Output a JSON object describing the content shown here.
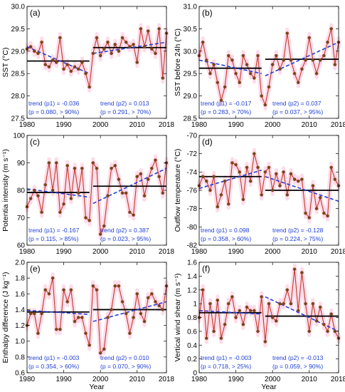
{
  "figure": {
    "colors": {
      "series": "#c0392b",
      "marker_fill": "#6b4a1a",
      "mean_line": "#000000",
      "trend_line": "#1f3fd6",
      "annotation": "#1f3fd6",
      "shade": "#ffd6e6"
    }
  },
  "chart_data": [
    {
      "type": "line",
      "panel_label": "(a)",
      "ylabel": "SST (°C)",
      "xlabel": "",
      "xlim": [
        1980,
        2018
      ],
      "ylim": [
        27.5,
        30.0
      ],
      "xticks": [
        "1980",
        "1990",
        "2000",
        "2010",
        "2018"
      ],
      "yticks": [
        "27.5",
        "28.0",
        "28.5",
        "29.0",
        "29.5",
        "30.0"
      ],
      "x": [
        1980,
        1981,
        1982,
        1983,
        1984,
        1985,
        1986,
        1987,
        1988,
        1989,
        1990,
        1991,
        1992,
        1993,
        1994,
        1995,
        1996,
        1997,
        1998,
        1999,
        2000,
        2001,
        2002,
        2003,
        2004,
        2005,
        2006,
        2007,
        2008,
        2009,
        2010,
        2011,
        2012,
        2013,
        2014,
        2015,
        2016,
        2017,
        2018
      ],
      "series": [
        {
          "values": [
            29.05,
            29.1,
            29.0,
            28.95,
            29.2,
            28.7,
            28.65,
            28.8,
            28.75,
            29.3,
            28.6,
            28.7,
            28.55,
            28.65,
            28.6,
            28.75,
            28.5,
            28.2,
            28.95,
            29.3,
            28.9,
            29.05,
            29.2,
            28.95,
            29.15,
            29.0,
            29.3,
            29.2,
            29.1,
            29.15,
            28.75,
            29.5,
            29.1,
            29.45,
            29.05,
            28.95,
            29.5,
            28.4,
            29.4
          ]
        }
      ],
      "means": [
        {
          "from": 1980,
          "to": 1997,
          "value": 28.78
        },
        {
          "from": 1998,
          "to": 2018,
          "value": 29.08
        }
      ],
      "trends": [
        {
          "from": 1980,
          "to": 1997,
          "start": 29.1,
          "end": 28.5
        },
        {
          "from": 1998,
          "to": 2018,
          "start": 28.95,
          "end": 29.2
        }
      ],
      "annotations": [
        {
          "line1": "trend (p1) = -0.036",
          "line2": "(p = 0.080, > 90%)"
        },
        {
          "line1": "trend (p2) = 0.013",
          "line2": "(p = 0.291, > 70%)"
        }
      ]
    },
    {
      "type": "line",
      "panel_label": "(b)",
      "ylabel": "SST before 24h (°C)",
      "xlabel": "",
      "xlim": [
        1980,
        2018
      ],
      "ylim": [
        28.5,
        31.0
      ],
      "xticks": [
        "1980",
        "1990",
        "2000",
        "2010",
        "2018"
      ],
      "yticks": [
        "28.5",
        "29.0",
        "29.5",
        "30.0",
        "30.5",
        "31.0"
      ],
      "x": [
        1980,
        1981,
        1982,
        1983,
        1984,
        1985,
        1986,
        1987,
        1988,
        1989,
        1990,
        1991,
        1992,
        1993,
        1994,
        1995,
        1996,
        1997,
        1998,
        1999,
        2000,
        2001,
        2002,
        2003,
        2004,
        2005,
        2006,
        2007,
        2008,
        2009,
        2010,
        2011,
        2012,
        2013,
        2014,
        2015,
        2016,
        2017,
        2018
      ],
      "series": [
        {
          "values": [
            29.9,
            30.2,
            29.8,
            29.5,
            29.7,
            29.3,
            28.9,
            29.2,
            29.9,
            29.8,
            29.5,
            29.3,
            29.9,
            29.7,
            29.5,
            29.4,
            29.9,
            29.0,
            28.8,
            29.2,
            29.7,
            29.9,
            29.6,
            29.8,
            30.4,
            29.8,
            29.5,
            29.3,
            29.6,
            29.8,
            30.3,
            29.8,
            29.5,
            29.8,
            29.9,
            30.2,
            30.5,
            29.7,
            30.2
          ]
        }
      ],
      "means": [
        {
          "from": 1980,
          "to": 1997,
          "value": 29.62
        },
        {
          "from": 1998,
          "to": 2018,
          "value": 29.82
        }
      ],
      "trends": [
        {
          "from": 1980,
          "to": 1997,
          "start": 29.8,
          "end": 29.5
        },
        {
          "from": 1998,
          "to": 2018,
          "start": 29.45,
          "end": 30.2
        }
      ],
      "annotations": [
        {
          "line1": "trend (p1) = -0.017",
          "line2": "(p = 0.283, > 70%)"
        },
        {
          "line1": "trend (p2) = 0.037",
          "line2": "(p = 0.037, > 95%)"
        }
      ]
    },
    {
      "type": "line",
      "panel_label": "(c)",
      "ylabel": "Potentia intensity (m s⁻¹)",
      "xlabel": "",
      "xlim": [
        1980,
        2018
      ],
      "ylim": [
        60,
        100
      ],
      "xticks": [
        "1980",
        "1990",
        "2000",
        "2010",
        "2018"
      ],
      "yticks": [
        "60",
        "70",
        "80",
        "90",
        "100"
      ],
      "x": [
        1980,
        1981,
        1982,
        1983,
        1984,
        1985,
        1986,
        1987,
        1988,
        1989,
        1990,
        1991,
        1992,
        1993,
        1994,
        1995,
        1996,
        1997,
        1998,
        1999,
        2000,
        2001,
        2002,
        2003,
        2004,
        2005,
        2006,
        2007,
        2008,
        2009,
        2010,
        2011,
        2012,
        2013,
        2014,
        2015,
        2016,
        2017,
        2018
      ],
      "series": [
        {
          "values": [
            74,
            77,
            80,
            78,
            72,
            82,
            90,
            80,
            90,
            72,
            75,
            89,
            77,
            88,
            79,
            88,
            70,
            69,
            90,
            88,
            64,
            67,
            78,
            88,
            89,
            84,
            79,
            79,
            72,
            71,
            85,
            86,
            78,
            84,
            88,
            91,
            85,
            79,
            90
          ]
        }
      ],
      "means": [
        {
          "from": 1980,
          "to": 1997,
          "value": 79.2
        },
        {
          "from": 1998,
          "to": 2018,
          "value": 81.5
        }
      ],
      "trends": [
        {
          "from": 1980,
          "to": 1997,
          "start": 80.5,
          "end": 77.5
        },
        {
          "from": 1998,
          "to": 2018,
          "start": 75.2,
          "end": 88.0
        }
      ],
      "annotations": [
        {
          "line1": "trend (p1) = -0.167",
          "line2": "(p = 0.115, > 85%)"
        },
        {
          "line1": "trend (p2) = 0.387",
          "line2": "(p = 0.023, > 95%)"
        }
      ]
    },
    {
      "type": "line",
      "panel_label": "(d)",
      "ylabel": "Outflow temperature (°C)",
      "xlabel": "",
      "xlim": [
        1980,
        2018
      ],
      "ylim": [
        -82,
        -70
      ],
      "xticks": [
        "1980",
        "1990",
        "2000",
        "2010",
        "2018"
      ],
      "yticks": [
        "-82",
        "-80",
        "-78",
        "-76",
        "-74",
        "-72",
        "-70"
      ],
      "x": [
        1980,
        1981,
        1982,
        1983,
        1984,
        1985,
        1986,
        1987,
        1988,
        1989,
        1990,
        1991,
        1992,
        1993,
        1994,
        1995,
        1996,
        1997,
        1998,
        1999,
        2000,
        2001,
        2002,
        2003,
        2004,
        2005,
        2006,
        2007,
        2008,
        2009,
        2010,
        2011,
        2012,
        2013,
        2014,
        2015,
        2016,
        2017,
        2018
      ],
      "series": [
        {
          "values": [
            -75.5,
            -74.5,
            -75.0,
            -76.0,
            -74.5,
            -77.8,
            -76.5,
            -75.0,
            -77.5,
            -73.0,
            -73.2,
            -74.0,
            -77.0,
            -73.5,
            -75.0,
            -72.0,
            -73.5,
            -76.5,
            -74.0,
            -73.5,
            -76.0,
            -74.2,
            -75.5,
            -74.0,
            -76.5,
            -74.2,
            -74.8,
            -75.0,
            -74.8,
            -78.5,
            -79.0,
            -75.5,
            -78.0,
            -76.8,
            -78.5,
            -78.8,
            -73.5,
            -74.8,
            -75.5
          ]
        }
      ],
      "means": [
        {
          "from": 1980,
          "to": 1997,
          "value": -74.5
        },
        {
          "from": 1998,
          "to": 2018,
          "value": -76.0
        }
      ],
      "trends": [
        {
          "from": 1980,
          "to": 1997,
          "start": -75.8,
          "end": -73.8
        },
        {
          "from": 1998,
          "to": 2018,
          "start": -74.5,
          "end": -77.2
        }
      ],
      "annotations": [
        {
          "line1": "trend (p1) = 0.098",
          "line2": "(p = 0.358, > 60%)"
        },
        {
          "line1": "trend (p2) = -0.128",
          "line2": "(p = 0.224, > 75%)"
        }
      ]
    },
    {
      "type": "line",
      "panel_label": "(e)",
      "ylabel": "Enthalpy difference (J kg⁻¹)",
      "xlabel": "Year",
      "xlim": [
        1980,
        2018
      ],
      "ylim": [
        0.6,
        2.0
      ],
      "xticks": [
        "1980",
        "1990",
        "2000",
        "2010",
        "2018"
      ],
      "yticks": [
        "0.6",
        "0.8",
        "1.0",
        "1.2",
        "1.4",
        "1.6",
        "1.8",
        "2.0"
      ],
      "x": [
        1980,
        1981,
        1982,
        1983,
        1984,
        1985,
        1986,
        1987,
        1988,
        1989,
        1990,
        1991,
        1992,
        1993,
        1994,
        1995,
        1996,
        1997,
        1998,
        1999,
        2000,
        2001,
        2002,
        2003,
        2004,
        2005,
        2006,
        2007,
        2008,
        2009,
        2010,
        2011,
        2012,
        2013,
        2014,
        2015,
        2016,
        2017,
        2018
      ],
      "series": [
        {
          "values": [
            1.2,
            1.35,
            1.35,
            1.1,
            1.35,
            1.65,
            1.6,
            1.8,
            1.15,
            1.15,
            1.65,
            1.5,
            1.65,
            1.25,
            1.3,
            1.3,
            1.1,
            0.95,
            1.7,
            1.65,
            0.85,
            0.9,
            1.3,
            1.4,
            1.7,
            1.7,
            1.5,
            1.35,
            1.1,
            1.3,
            1.6,
            1.35,
            1.25,
            1.55,
            1.6,
            1.5,
            1.45,
            1.4,
            1.7
          ]
        }
      ],
      "means": [
        {
          "from": 1980,
          "to": 1997,
          "value": 1.37
        },
        {
          "from": 1998,
          "to": 2018,
          "value": 1.4
        }
      ],
      "trends": [
        {
          "from": 1980,
          "to": 1997,
          "start": 1.39,
          "end": 1.34
        },
        {
          "from": 1998,
          "to": 2018,
          "start": 1.25,
          "end": 1.5
        }
      ],
      "annotations": [
        {
          "line1": "trend (p1) = -0.003",
          "line2": "(p = 0.354, > 60%)"
        },
        {
          "line1": "trend (p2) = 0.010",
          "line2": "(p = 0.070, > 90%)"
        }
      ]
    },
    {
      "type": "line",
      "panel_label": "(f)",
      "ylabel": "Vertical wind shear (m s⁻¹)",
      "xlabel": "Year",
      "xlim": [
        1980,
        2018
      ],
      "ylim": [
        0,
        1.6
      ],
      "xticks": [
        "1980",
        "1990",
        "2000",
        "2010",
        "2018"
      ],
      "yticks": [
        "0",
        "0.2",
        "0.4",
        "0.6",
        "0.8",
        "1",
        "1.2",
        "1.4",
        "1.6"
      ],
      "x": [
        1980,
        1981,
        1982,
        1983,
        1984,
        1985,
        1986,
        1987,
        1988,
        1989,
        1990,
        1991,
        1992,
        1993,
        1994,
        1995,
        1996,
        1997,
        1998,
        1999,
        2000,
        2001,
        2002,
        2003,
        2004,
        2005,
        2006,
        2007,
        2008,
        2009,
        2010,
        2011,
        2012,
        2013,
        2014,
        2015,
        2016,
        2017,
        2018
      ],
      "series": [
        {
          "values": [
            0.8,
            1.2,
            0.5,
            1.0,
            0.6,
            1.05,
            0.5,
            0.7,
            1.0,
            1.1,
            0.8,
            0.9,
            0.7,
            0.95,
            0.9,
            0.9,
            0.6,
            1.1,
            0.45,
            1.0,
            0.8,
            0.75,
            1.0,
            1.0,
            1.2,
            1.0,
            1.5,
            0.9,
            1.45,
            1.0,
            0.6,
            1.0,
            0.75,
            0.95,
            0.7,
            0.6,
            0.85,
            0.6,
            0.5
          ]
        }
      ],
      "means": [
        {
          "from": 1980,
          "to": 1997,
          "value": 0.87
        },
        {
          "from": 1998,
          "to": 2018,
          "value": 0.82
        }
      ],
      "trends": [
        {
          "from": 1980,
          "to": 1997,
          "start": 0.9,
          "end": 0.85
        },
        {
          "from": 1998,
          "to": 2018,
          "start": 1.1,
          "end": 0.6
        }
      ],
      "annotations": [
        {
          "line1": "trend (p1) = -0.003",
          "line2": "(p = 0.718, > 25%)"
        },
        {
          "line1": "trend (p2) = -0.013",
          "line2": "(p = 0.059, > 90%)"
        }
      ]
    }
  ]
}
